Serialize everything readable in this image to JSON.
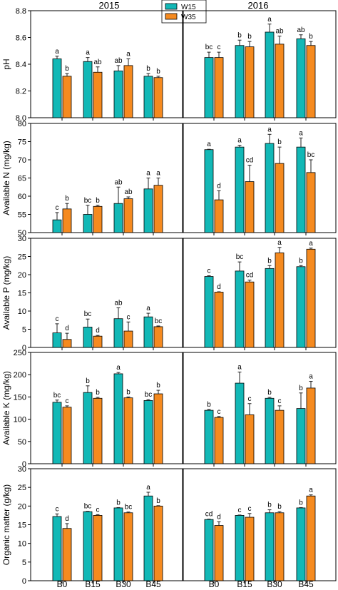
{
  "chart_data": {
    "type": "bar",
    "years": [
      "2015",
      "2016"
    ],
    "categories": [
      "B0",
      "B15",
      "B30",
      "B45"
    ],
    "series": [
      {
        "name": "W15",
        "color": "#12b8b6"
      },
      {
        "name": "W35",
        "color": "#f58a1f"
      }
    ],
    "legend_placement": "top-center",
    "grid": false,
    "panels": [
      {
        "ylabel": "pH",
        "ylim": [
          8.0,
          8.8
        ],
        "yticks": [
          "8.0",
          "8.2",
          "8.4",
          "8.6",
          "8.8"
        ],
        "data": {
          "2015": {
            "W15": {
              "values": [
                8.44,
                8.42,
                8.35,
                8.31
              ],
              "errors": [
                0.02,
                0.03,
                0.04,
                0.02
              ],
              "letters": [
                "a",
                "a",
                "ab",
                "b"
              ]
            },
            "W35": {
              "values": [
                8.31,
                8.34,
                8.39,
                8.3
              ],
              "errors": [
                0.02,
                0.04,
                0.05,
                0.01
              ],
              "letters": [
                "b",
                "ab",
                "a",
                "b"
              ]
            }
          },
          "2016": {
            "W15": {
              "values": [
                8.45,
                8.54,
                8.64,
                8.59
              ],
              "errors": [
                0.04,
                0.04,
                0.06,
                0.03
              ],
              "letters": [
                "bc",
                "b",
                "a",
                "ab"
              ]
            },
            "W35": {
              "values": [
                8.45,
                8.53,
                8.55,
                8.54
              ],
              "errors": [
                0.04,
                0.04,
                0.06,
                0.03
              ],
              "letters": [
                "c",
                "b",
                "ab",
                "b"
              ]
            }
          }
        }
      },
      {
        "ylabel": "Available N (mg/kg)",
        "ylim": [
          50,
          80
        ],
        "yticks": [
          "50",
          "55",
          "60",
          "65",
          "70",
          "75",
          "80"
        ],
        "data": {
          "2015": {
            "W15": {
              "values": [
                53.5,
                55.0,
                58.0,
                62.0
              ],
              "errors": [
                2.0,
                2.5,
                4.5,
                3.0
              ],
              "letters": [
                "c",
                "bc",
                "ab",
                "a"
              ]
            },
            "W35": {
              "values": [
                56.5,
                57.2,
                59.3,
                63.0
              ],
              "errors": [
                1.5,
                0.3,
                0.5,
                2.0
              ],
              "letters": [
                "b",
                "b",
                "ab",
                "a"
              ]
            }
          },
          "2016": {
            "W15": {
              "values": [
                72.8,
                73.5,
                74.5,
                73.5
              ],
              "errors": [
                0.1,
                0.5,
                2.5,
                2.5
              ],
              "letters": [
                "a",
                "a",
                "a",
                "a"
              ]
            },
            "W35": {
              "values": [
                59.0,
                64.0,
                69.0,
                66.5
              ],
              "errors": [
                2.5,
                4.5,
                4.5,
                3.5
              ],
              "letters": [
                "d",
                "cd",
                "b",
                "bc"
              ]
            }
          }
        }
      },
      {
        "ylabel": "Available P (mg/kg)",
        "ylim": [
          0,
          30
        ],
        "yticks": [
          "0",
          "5",
          "10",
          "15",
          "20",
          "25",
          "30"
        ],
        "data": {
          "2015": {
            "W15": {
              "values": [
                4.0,
                5.6,
                7.9,
                8.4
              ],
              "errors": [
                2.5,
                2.2,
                3.0,
                1.0
              ],
              "letters": [
                "c",
                "bc",
                "ab",
                "a"
              ]
            },
            "W35": {
              "values": [
                2.2,
                3.1,
                4.5,
                5.7
              ],
              "errors": [
                1.7,
                0.2,
                2.5,
                0.2
              ],
              "letters": [
                "d",
                "d",
                "c",
                "bc"
              ]
            }
          },
          "2016": {
            "W15": {
              "values": [
                19.5,
                21.0,
                21.7,
                22.2
              ],
              "errors": [
                0.2,
                2.5,
                0.8,
                0.3
              ],
              "letters": [
                "c",
                "bc",
                "b",
                "b"
              ]
            },
            "W35": {
              "values": [
                15.2,
                18.0,
                26.0,
                27.0
              ],
              "errors": [
                0.1,
                0.5,
                1.5,
                0.3
              ],
              "letters": [
                "d",
                "cd",
                "a",
                "a"
              ]
            }
          }
        }
      },
      {
        "ylabel": "Available K (mg/kg)",
        "ylim": [
          0,
          250
        ],
        "yticks": [
          "0",
          "50",
          "100",
          "150",
          "200",
          "250"
        ],
        "data": {
          "2015": {
            "W15": {
              "values": [
                138,
                160,
                202,
                142
              ],
              "errors": [
                5,
                15,
                3,
                2
              ],
              "letters": [
                "bc",
                "b",
                "a",
                "bc"
              ]
            },
            "W35": {
              "values": [
                127,
                147,
                148,
                157
              ],
              "errors": [
                3,
                2,
                2,
                8
              ],
              "letters": [
                "c",
                "b",
                "b",
                "b"
              ]
            }
          },
          "2016": {
            "W15": {
              "values": [
                120,
                181,
                147,
                124
              ],
              "errors": [
                2,
                25,
                2,
                35
              ],
              "letters": [
                "b",
                "a",
                "b",
                "b"
              ]
            },
            "W35": {
              "values": [
                104,
                110,
                120,
                170
              ],
              "errors": [
                2,
                25,
                10,
                15
              ],
              "letters": [
                "c",
                "c",
                "c",
                "a"
              ]
            }
          }
        }
      },
      {
        "ylabel": "Organic matter (g/kg)",
        "ylim": [
          0,
          30
        ],
        "yticks": [
          "0",
          "5",
          "10",
          "15",
          "20",
          "25",
          "30"
        ],
        "data": {
          "2015": {
            "W15": {
              "values": [
                17.2,
                18.5,
                19.5,
                22.7
              ],
              "errors": [
                0.7,
                0.1,
                0.1,
                1.0
              ],
              "letters": [
                "c",
                "bc",
                "b",
                "a"
              ]
            },
            "W35": {
              "values": [
                14.0,
                17.5,
                18.2,
                20.0
              ],
              "errors": [
                1.3,
                0.2,
                0.2,
                0.1
              ],
              "letters": [
                "d",
                "c",
                "bc",
                "b"
              ]
            }
          },
          "2016": {
            "W15": {
              "values": [
                16.4,
                17.5,
                18.2,
                19.5
              ],
              "errors": [
                0.1,
                0.1,
                0.8,
                0.1
              ],
              "letters": [
                "cd",
                "c",
                "b",
                "b"
              ]
            },
            "W35": {
              "values": [
                14.8,
                17.0,
                18.2,
                22.7
              ],
              "errors": [
                1.0,
                1.0,
                0.3,
                0.3
              ],
              "letters": [
                "d",
                "c",
                "b",
                "a"
              ]
            }
          }
        }
      }
    ]
  }
}
